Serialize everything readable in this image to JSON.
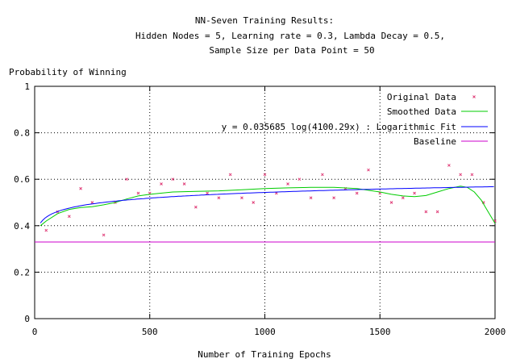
{
  "chart_data": {
    "type": "scatter",
    "title_lines": [
      "NN-Seven Training Results:",
      "Hidden Nodes = 5, Learning rate = 0.3, Lambda Decay = 0.5,",
      "Sample Size per Data Point = 50"
    ],
    "xlabel": "Number of Training Epochs",
    "ylabel": "Probability of Winning",
    "xlim": [
      0,
      2000
    ],
    "ylim": [
      0,
      1
    ],
    "x_ticks": [
      0,
      500,
      1000,
      1500,
      2000
    ],
    "y_ticks": [
      0,
      0.2,
      0.4,
      0.6,
      0.8,
      1
    ],
    "grid": "dotted",
    "legend_position": "top-right",
    "series": [
      {
        "name": "Original Data",
        "style": "points",
        "color": "#e0407a",
        "x": [
          50,
          100,
          150,
          200,
          250,
          300,
          350,
          400,
          450,
          500,
          550,
          600,
          650,
          700,
          750,
          800,
          850,
          900,
          950,
          1000,
          1050,
          1100,
          1150,
          1200,
          1250,
          1300,
          1350,
          1400,
          1450,
          1500,
          1550,
          1600,
          1650,
          1700,
          1750,
          1800,
          1850,
          1900,
          1950,
          2000
        ],
        "y": [
          0.38,
          0.46,
          0.44,
          0.56,
          0.5,
          0.36,
          0.5,
          0.6,
          0.54,
          0.54,
          0.58,
          0.6,
          0.58,
          0.48,
          0.54,
          0.52,
          0.62,
          0.52,
          0.5,
          0.62,
          0.54,
          0.58,
          0.6,
          0.52,
          0.62,
          0.52,
          0.56,
          0.54,
          0.64,
          0.54,
          0.5,
          0.52,
          0.54,
          0.46,
          0.46,
          0.66,
          0.62,
          0.62,
          0.5,
          0.42
        ]
      },
      {
        "name": "Smoothed Data",
        "style": "line",
        "color": "#00cc00",
        "x": [
          25,
          50,
          100,
          150,
          200,
          250,
          300,
          350,
          400,
          450,
          500,
          600,
          700,
          800,
          900,
          1000,
          1100,
          1200,
          1300,
          1400,
          1500,
          1550,
          1600,
          1650,
          1700,
          1750,
          1800,
          1850,
          1880,
          1910,
          1940,
          1970,
          2000
        ],
        "y": [
          0.4,
          0.42,
          0.452,
          0.47,
          0.478,
          0.482,
          0.49,
          0.5,
          0.515,
          0.528,
          0.535,
          0.545,
          0.548,
          0.55,
          0.555,
          0.56,
          0.563,
          0.565,
          0.565,
          0.56,
          0.545,
          0.535,
          0.528,
          0.525,
          0.53,
          0.545,
          0.56,
          0.57,
          0.565,
          0.545,
          0.51,
          0.46,
          0.41
        ]
      },
      {
        "name": "y = 0.035685 log(4100.29x) : Logarithmic Fit",
        "style": "function",
        "color": "#0000ff",
        "coefficient": 0.035685,
        "multiplier": 4100.29,
        "x_start": 25
      },
      {
        "name": "Baseline",
        "style": "hline",
        "color": "#cc00cc",
        "y": 0.33
      }
    ]
  }
}
